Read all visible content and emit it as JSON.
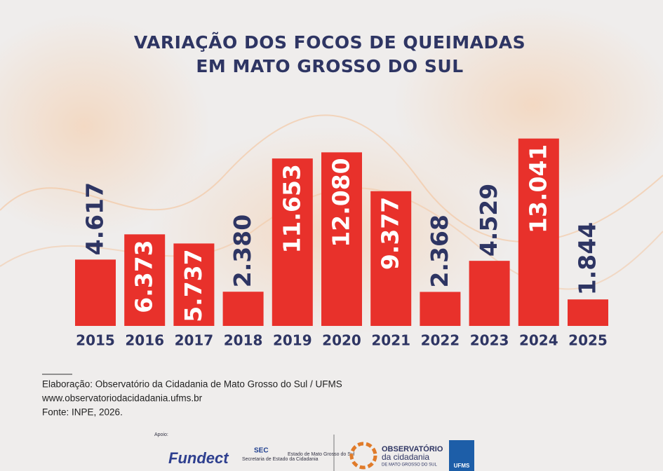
{
  "chart_data": {
    "type": "bar",
    "title": "VARIAÇÃO DOS FOCOS DE QUEIMADAS",
    "subtitle": "EM MATO GROSSO DO SUL",
    "categories": [
      "2015",
      "2016",
      "2017",
      "2018",
      "2019",
      "2020",
      "2021",
      "2022",
      "2023",
      "2024",
      "2025"
    ],
    "values": [
      4617,
      6373,
      5737,
      2380,
      11653,
      12080,
      9377,
      2368,
      4529,
      13041,
      1844
    ],
    "value_labels": [
      "4.617",
      "6.373",
      "5.737",
      "2.380",
      "11.653",
      "12.080",
      "9.377",
      "2.368",
      "4.529",
      "13.041",
      "1.844"
    ],
    "color": "#e8312b",
    "ylim": [
      0,
      14000
    ]
  },
  "footer": {
    "lines": [
      "Elaboração: Observatório da Cidadania de Mato Grosso do Sul / UFMS",
      "www.observatoriodacidadania.ufms.br",
      "Fonte: INPE, 2026."
    ]
  },
  "logos": {
    "support": "Apoio:",
    "fundect": "Fundect",
    "sec": "SEC",
    "sec_name": "Secretaria de Estado da Cidadania",
    "state": "Estado de Mato Grosso do Sul",
    "obs1": "OBSERVATÓRIO",
    "obs2": "da cidadania",
    "obs3": "DE MATO GROSSO DO SUL",
    "ufms": "UFMS"
  }
}
